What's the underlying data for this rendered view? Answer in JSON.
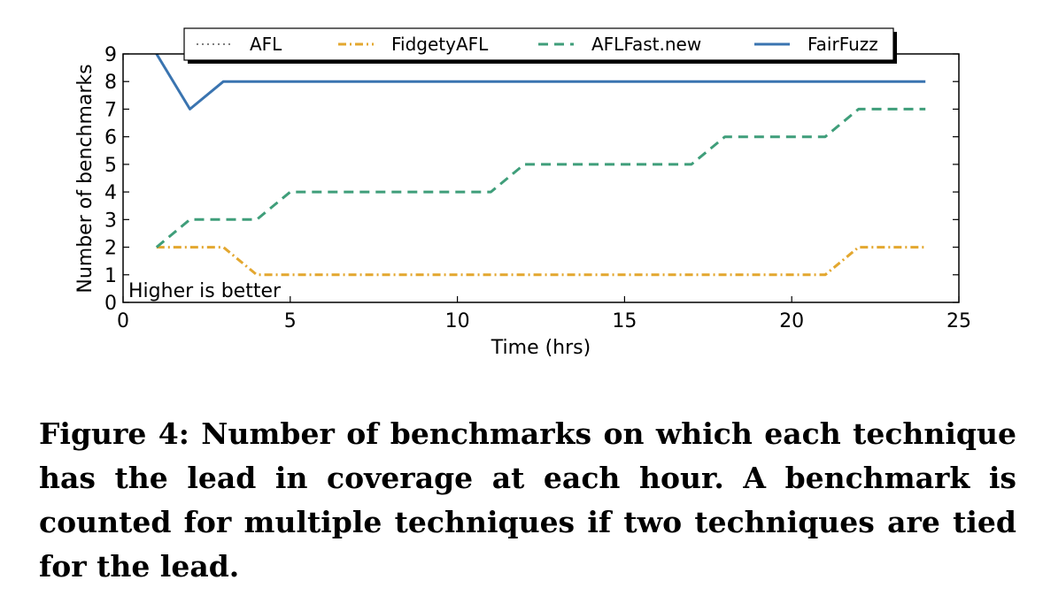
{
  "chart_data": {
    "type": "line",
    "xlabel": "Time (hrs)",
    "ylabel": "Number of benchmarks",
    "xlim": [
      0,
      25
    ],
    "ylim": [
      0,
      9
    ],
    "xticks": [
      "0",
      "5",
      "10",
      "15",
      "20",
      "25"
    ],
    "yticks": [
      "0",
      "1",
      "2",
      "3",
      "4",
      "5",
      "6",
      "7",
      "8",
      "9"
    ],
    "grid": false,
    "legend_position": "top",
    "annotation": "Higher is better",
    "series": [
      {
        "name": "AFL",
        "color": "#7f7f7f",
        "style": "dotted",
        "x": [],
        "y": []
      },
      {
        "name": "FidgetyAFL",
        "color": "#e3a72f",
        "style": "dashdot",
        "x": [
          1,
          2,
          3,
          4,
          5,
          6,
          7,
          8,
          9,
          10,
          11,
          12,
          13,
          14,
          15,
          16,
          17,
          18,
          19,
          20,
          21,
          22,
          23,
          24
        ],
        "y": [
          2,
          2,
          2,
          1,
          1,
          1,
          1,
          1,
          1,
          1,
          1,
          1,
          1,
          1,
          1,
          1,
          1,
          1,
          1,
          1,
          1,
          2,
          2,
          2
        ]
      },
      {
        "name": "AFLFast.new",
        "color": "#3f9e7a",
        "style": "dashed",
        "x": [
          1,
          2,
          3,
          4,
          5,
          6,
          7,
          8,
          9,
          10,
          11,
          12,
          13,
          14,
          15,
          16,
          17,
          18,
          19,
          20,
          21,
          22,
          23,
          24
        ],
        "y": [
          2,
          3,
          3,
          3,
          4,
          4,
          4,
          4,
          4,
          4,
          4,
          5,
          5,
          5,
          5,
          5,
          5,
          6,
          6,
          6,
          6,
          7,
          7,
          7
        ]
      },
      {
        "name": "FairFuzz",
        "color": "#3a74b0",
        "style": "solid",
        "x": [
          1,
          2,
          3,
          4,
          5,
          6,
          7,
          8,
          9,
          10,
          11,
          12,
          13,
          14,
          15,
          16,
          17,
          18,
          19,
          20,
          21,
          22,
          23,
          24
        ],
        "y": [
          9,
          7,
          8,
          8,
          8,
          8,
          8,
          8,
          8,
          8,
          8,
          8,
          8,
          8,
          8,
          8,
          8,
          8,
          8,
          8,
          8,
          8,
          8,
          8
        ]
      }
    ]
  },
  "caption": "Figure 4: Number of benchmarks on which each technique has the lead in coverage at each hour. A benchmark is counted for multiple techniques if two techniques are tied for the lead."
}
